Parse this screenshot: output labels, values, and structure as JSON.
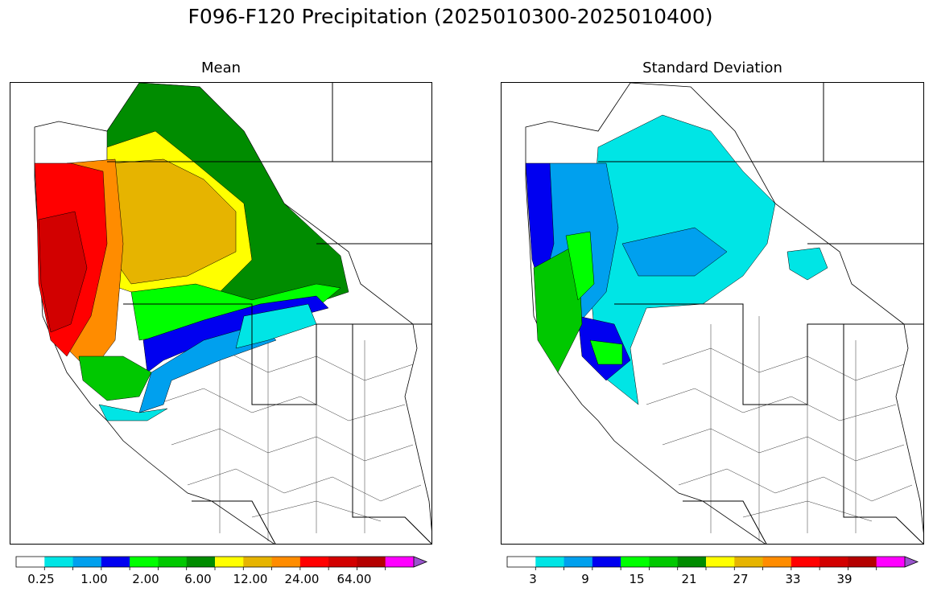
{
  "figure": {
    "title": "F096-F120 Precipitation (2025010300-2025010400)"
  },
  "panels": [
    {
      "title": "Mean",
      "colorbar": {
        "colors": [
          "#ffffff",
          "#00e5e5",
          "#00a0ee",
          "#0000f0",
          "#00ff00",
          "#00c800",
          "#008c00",
          "#ffff00",
          "#e6b400",
          "#ff8c00",
          "#ff0000",
          "#d20000",
          "#b40000",
          "#ff00ff",
          "#9955cc"
        ],
        "tick_labels": [
          "0.25",
          "1.00",
          "2.00",
          "6.00",
          "12.00",
          "24.00",
          "64.00"
        ],
        "extend": "max"
      }
    },
    {
      "title": "Standard Deviation",
      "colorbar": {
        "colors": [
          "#ffffff",
          "#00e5e5",
          "#00a0ee",
          "#0000f0",
          "#00ff00",
          "#00c800",
          "#008c00",
          "#ffff00",
          "#e6b400",
          "#ff8c00",
          "#ff0000",
          "#d20000",
          "#b40000",
          "#ff00ff",
          "#9955cc"
        ],
        "tick_labels": [
          "3",
          "9",
          "15",
          "21",
          "27",
          "33",
          "39"
        ],
        "extend": "max"
      }
    }
  ]
}
